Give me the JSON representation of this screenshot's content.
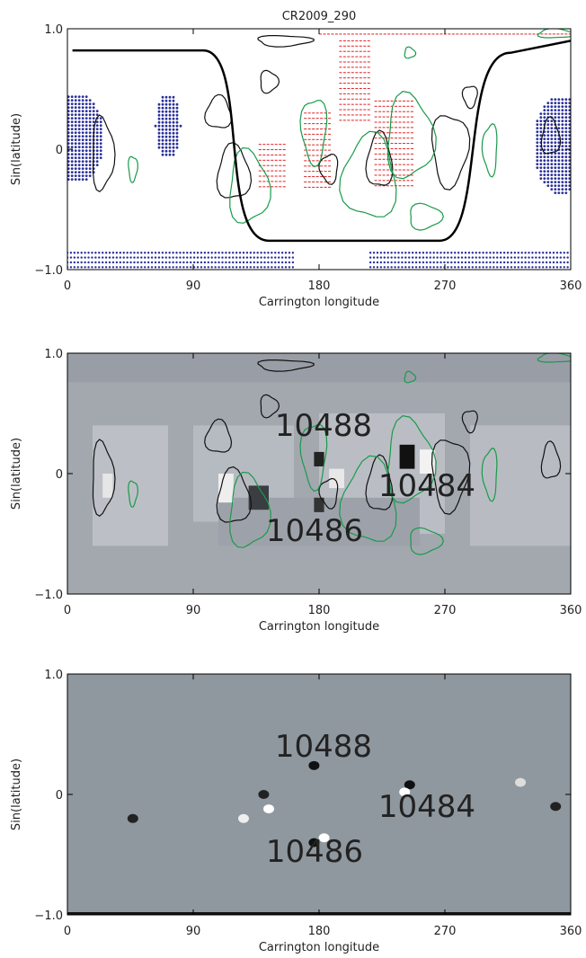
{
  "chart_data": [
    {
      "type": "contour",
      "title": "CR2009_290",
      "xlabel": "Carrington longitude",
      "ylabel": "Sin(latitude)",
      "xlim": [
        0,
        360
      ],
      "ylim": [
        -1,
        1
      ],
      "xticks": [
        0,
        90,
        180,
        270,
        360
      ],
      "yticks": [
        {
          "value": -1,
          "label": "−1.0"
        },
        0,
        {
          "value": 1,
          "label": "1.0"
        }
      ]
    },
    {
      "type": "heatmap",
      "xlabel": "Carrington longitude",
      "ylabel": "Sin(latitude)",
      "xlim": [
        0,
        360
      ],
      "ylim": [
        -1,
        1
      ],
      "xticks": [
        0,
        90,
        180,
        270,
        360
      ],
      "yticks": [
        {
          "value": -1,
          "label": "−1.0"
        },
        0,
        {
          "value": 1,
          "label": "1.0"
        }
      ],
      "annotations": [
        "10488",
        "10484",
        "10486"
      ]
    },
    {
      "type": "image",
      "xlabel": "Carrington longitude",
      "ylabel": "Sin(latitude)",
      "xlim": [
        0,
        360
      ],
      "ylim": [
        -1,
        1
      ],
      "xticks": [
        0,
        90,
        180,
        270,
        360
      ],
      "yticks": [
        {
          "value": -1,
          "label": "−1.0"
        },
        0,
        {
          "value": 1,
          "label": "1.0"
        }
      ],
      "annotations": [
        "10488",
        "10484",
        "10486"
      ]
    }
  ]
}
